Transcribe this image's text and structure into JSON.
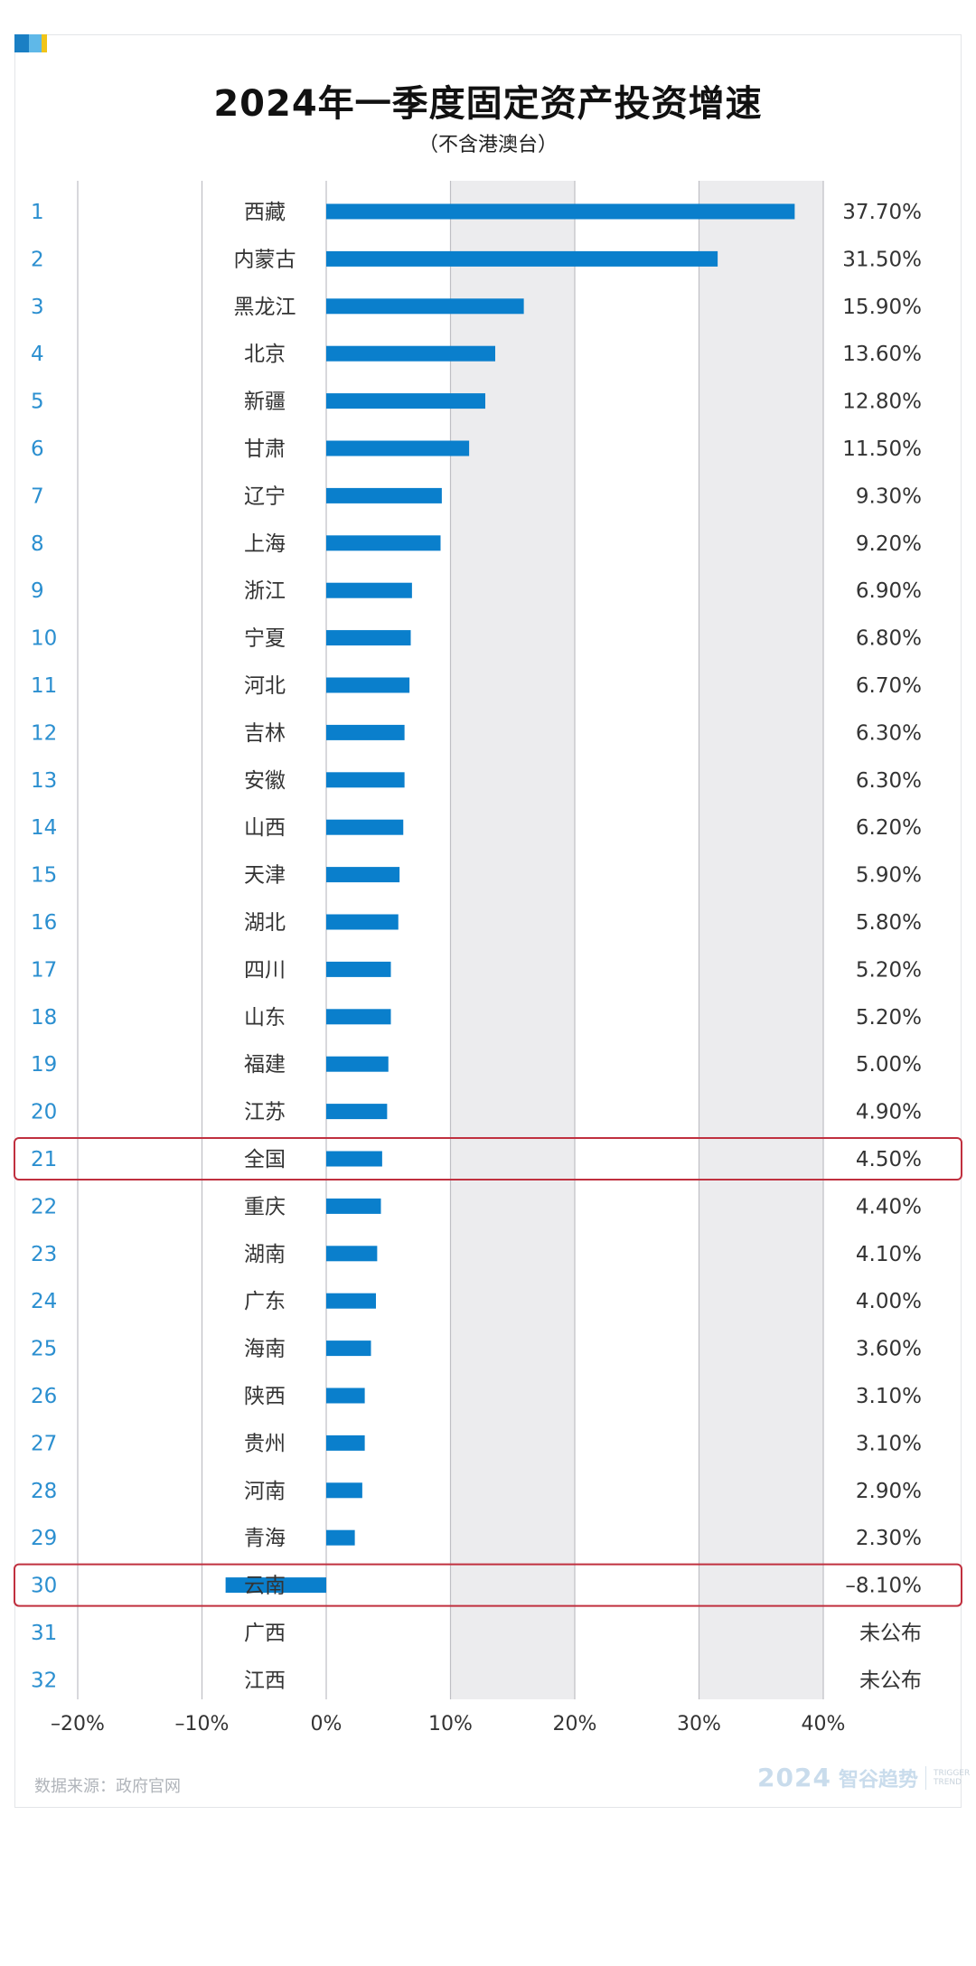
{
  "title": "2024年一季度固定资产投资增速",
  "subtitle": "（不含港澳台）",
  "source": "数据来源：政府官网",
  "brand": {
    "year": "2024",
    "name": "智谷趋势",
    "en_line1": "TRIGGER",
    "en_line2": "TREND"
  },
  "colors": {
    "bar": "#0a7fcc",
    "rank": "#2b8fd0",
    "highlight": "#c0303f",
    "band": "#ececee",
    "grid": "#bfbfc4",
    "text": "#333333"
  },
  "chart_data": {
    "type": "bar",
    "orientation": "horizontal",
    "title": "2024年一季度固定资产投资增速",
    "subtitle": "（不含港澳台）",
    "xlim": [
      -20,
      40
    ],
    "xticks": [
      -20,
      -10,
      0,
      10,
      20,
      30,
      40
    ],
    "xtick_labels": [
      "–20%",
      "–10%",
      "0%",
      "10%",
      "20%",
      "30%",
      "40%"
    ],
    "highlighted_ranks": [
      21,
      30
    ],
    "rows": [
      {
        "rank": "1",
        "region": "西藏",
        "value": 37.7,
        "label": "37.70%"
      },
      {
        "rank": "2",
        "region": "内蒙古",
        "value": 31.5,
        "label": "31.50%"
      },
      {
        "rank": "3",
        "region": "黑龙江",
        "value": 15.9,
        "label": "15.90%"
      },
      {
        "rank": "4",
        "region": "北京",
        "value": 13.6,
        "label": "13.60%"
      },
      {
        "rank": "5",
        "region": "新疆",
        "value": 12.8,
        "label": "12.80%"
      },
      {
        "rank": "6",
        "region": "甘肃",
        "value": 11.5,
        "label": "11.50%"
      },
      {
        "rank": "7",
        "region": "辽宁",
        "value": 9.3,
        "label": "9.30%"
      },
      {
        "rank": "8",
        "region": "上海",
        "value": 9.2,
        "label": "9.20%"
      },
      {
        "rank": "9",
        "region": "浙江",
        "value": 6.9,
        "label": "6.90%"
      },
      {
        "rank": "10",
        "region": "宁夏",
        "value": 6.8,
        "label": "6.80%"
      },
      {
        "rank": "11",
        "region": "河北",
        "value": 6.7,
        "label": "6.70%"
      },
      {
        "rank": "12",
        "region": "吉林",
        "value": 6.3,
        "label": "6.30%"
      },
      {
        "rank": "13",
        "region": "安徽",
        "value": 6.3,
        "label": "6.30%"
      },
      {
        "rank": "14",
        "region": "山西",
        "value": 6.2,
        "label": "6.20%"
      },
      {
        "rank": "15",
        "region": "天津",
        "value": 5.9,
        "label": "5.90%"
      },
      {
        "rank": "16",
        "region": "湖北",
        "value": 5.8,
        "label": "5.80%"
      },
      {
        "rank": "17",
        "region": "四川",
        "value": 5.2,
        "label": "5.20%"
      },
      {
        "rank": "18",
        "region": "山东",
        "value": 5.2,
        "label": "5.20%"
      },
      {
        "rank": "19",
        "region": "福建",
        "value": 5.0,
        "label": "5.00%"
      },
      {
        "rank": "20",
        "region": "江苏",
        "value": 4.9,
        "label": "4.90%"
      },
      {
        "rank": "21",
        "region": "全国",
        "value": 4.5,
        "label": "4.50%"
      },
      {
        "rank": "22",
        "region": "重庆",
        "value": 4.4,
        "label": "4.40%"
      },
      {
        "rank": "23",
        "region": "湖南",
        "value": 4.1,
        "label": "4.10%"
      },
      {
        "rank": "24",
        "region": "广东",
        "value": 4.0,
        "label": "4.00%"
      },
      {
        "rank": "25",
        "region": "海南",
        "value": 3.6,
        "label": "3.60%"
      },
      {
        "rank": "26",
        "region": "陕西",
        "value": 3.1,
        "label": "3.10%"
      },
      {
        "rank": "27",
        "region": "贵州",
        "value": 3.1,
        "label": "3.10%"
      },
      {
        "rank": "28",
        "region": "河南",
        "value": 2.9,
        "label": "2.90%"
      },
      {
        "rank": "29",
        "region": "青海",
        "value": 2.3,
        "label": "2.30%"
      },
      {
        "rank": "30",
        "region": "云南",
        "value": -8.1,
        "label": "–8.10%"
      },
      {
        "rank": "31",
        "region": "广西",
        "value": null,
        "label": "未公布"
      },
      {
        "rank": "32",
        "region": "江西",
        "value": null,
        "label": "未公布"
      }
    ]
  }
}
